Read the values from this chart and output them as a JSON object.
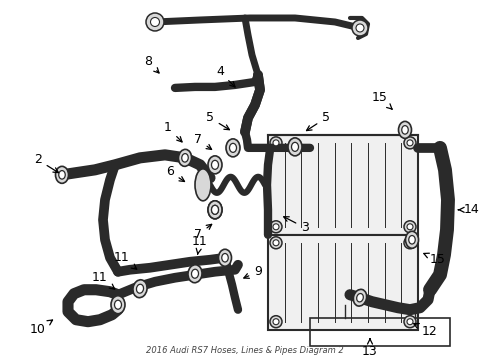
{
  "title": "2016 Audi RS7 Hoses, Lines & Pipes Diagram 2",
  "bg_color": "#ffffff",
  "line_color": "#2a2a2a",
  "fig_w": 4.89,
  "fig_h": 3.6,
  "dpi": 100
}
